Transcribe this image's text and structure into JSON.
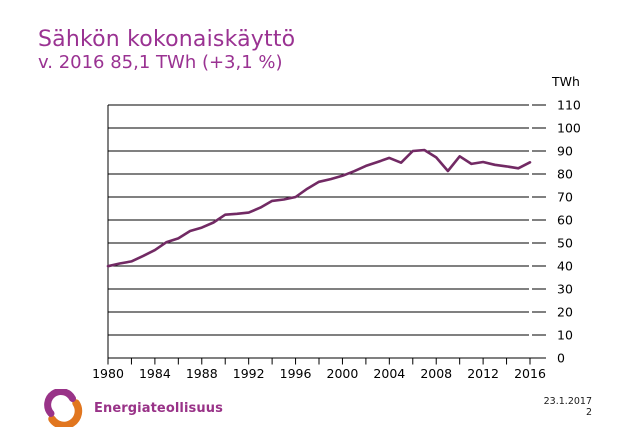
{
  "slide": {
    "title": "Sähkön kokonaiskäyttö",
    "subtitle": "v. 2016 85,1 TWh (+3,1 %)",
    "footer": {
      "logo_text": "Energiateollisuus",
      "date": "23.1.2017",
      "page_number": "2"
    }
  },
  "colors": {
    "title_purple": "#9a3292",
    "line_plum": "#722a64",
    "axis_black": "#000000",
    "logo_purple": "#993388",
    "logo_orange": "#e1761f"
  },
  "chart_data": {
    "type": "line",
    "title": "Sähkön kokonaiskäyttö",
    "series_name": "Sähkön kokonaiskäyttö (TWh)",
    "unit_label": "TWh",
    "x": [
      1980,
      1981,
      1982,
      1983,
      1984,
      1985,
      1986,
      1987,
      1988,
      1989,
      1990,
      1991,
      1992,
      1993,
      1994,
      1995,
      1996,
      1997,
      1998,
      1999,
      2000,
      2001,
      2002,
      2003,
      2004,
      2005,
      2006,
      2007,
      2008,
      2009,
      2010,
      2011,
      2012,
      2013,
      2014,
      2015,
      2016
    ],
    "values": [
      39.9,
      41.1,
      42.0,
      44.4,
      46.9,
      50.4,
      52.0,
      55.2,
      56.7,
      58.9,
      62.3,
      62.7,
      63.2,
      65.4,
      68.3,
      68.9,
      70.0,
      73.6,
      76.6,
      77.8,
      79.2,
      81.2,
      83.5,
      85.2,
      87.0,
      84.9,
      90.0,
      90.4,
      87.2,
      81.3,
      87.7,
      84.4,
      85.2,
      84.0,
      83.3,
      82.5,
      85.1
    ],
    "ylim": [
      0,
      110
    ],
    "y_tick_step": 10,
    "x_labeled_ticks": [
      1980,
      1984,
      1988,
      1992,
      1996,
      2000,
      2004,
      2008,
      2012,
      2016
    ],
    "x_minor_tick_step": 2,
    "grid": "horizontal",
    "y_axis_side": "right",
    "legend": "none"
  }
}
